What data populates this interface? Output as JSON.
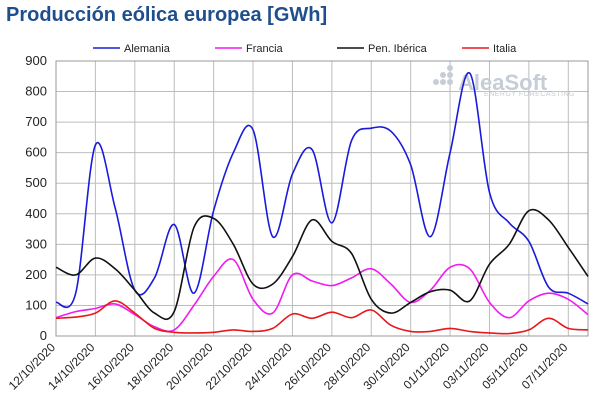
{
  "chart_data": {
    "type": "line",
    "title": "Producción eólica europea [GWh]",
    "xlabel": "",
    "ylabel": "",
    "ylim": [
      0,
      900
    ],
    "yticks": [
      0,
      100,
      200,
      300,
      400,
      500,
      600,
      700,
      800,
      900
    ],
    "x": [
      "12/10/2020",
      "13/10/2020",
      "14/10/2020",
      "15/10/2020",
      "16/10/2020",
      "17/10/2020",
      "18/10/2020",
      "19/10/2020",
      "20/10/2020",
      "21/10/2020",
      "22/10/2020",
      "23/10/2020",
      "24/10/2020",
      "25/10/2020",
      "26/10/2020",
      "27/10/2020",
      "28/10/2020",
      "29/10/2020",
      "30/10/2020",
      "31/10/2020",
      "01/11/2020",
      "02/11/2020",
      "03/11/2020",
      "04/11/2020",
      "05/11/2020",
      "06/11/2020",
      "07/11/2020",
      "08/11/2020"
    ],
    "xticks": [
      "12/10/2020",
      "14/10/2020",
      "16/10/2020",
      "18/10/2020",
      "20/10/2020",
      "22/10/2020",
      "24/10/2020",
      "26/10/2020",
      "28/10/2020",
      "30/10/2020",
      "01/11/2020",
      "03/11/2020",
      "05/11/2020",
      "07/11/2020"
    ],
    "grid": true,
    "legend_position": "top",
    "series": [
      {
        "name": "Alemania",
        "color": "#1a1adb",
        "values": [
          110,
          140,
          625,
          420,
          150,
          190,
          365,
          140,
          410,
          600,
          675,
          325,
          530,
          610,
          370,
          640,
          680,
          670,
          560,
          325,
          600,
          860,
          470,
          370,
          310,
          160,
          140,
          105
        ]
      },
      {
        "name": "Francia",
        "color": "#f01bf0",
        "values": [
          60,
          80,
          90,
          105,
          70,
          30,
          20,
          100,
          195,
          250,
          120,
          75,
          200,
          180,
          165,
          190,
          220,
          170,
          110,
          150,
          225,
          220,
          110,
          60,
          115,
          140,
          120,
          70
        ]
      },
      {
        "name": "Pen. Ibérica",
        "color": "#111111",
        "values": [
          225,
          200,
          255,
          220,
          150,
          75,
          80,
          355,
          385,
          300,
          170,
          170,
          260,
          380,
          310,
          270,
          120,
          75,
          110,
          145,
          150,
          115,
          235,
          300,
          410,
          380,
          290,
          195
        ]
      },
      {
        "name": "Italia",
        "color": "#e8181b",
        "values": [
          58,
          62,
          75,
          115,
          75,
          25,
          12,
          10,
          12,
          20,
          15,
          25,
          72,
          58,
          78,
          60,
          85,
          35,
          15,
          15,
          25,
          15,
          10,
          8,
          20,
          58,
          25,
          20
        ]
      }
    ]
  },
  "watermark": {
    "name": "AleaSoft",
    "tagline": "ENERGY FORECASTING"
  }
}
